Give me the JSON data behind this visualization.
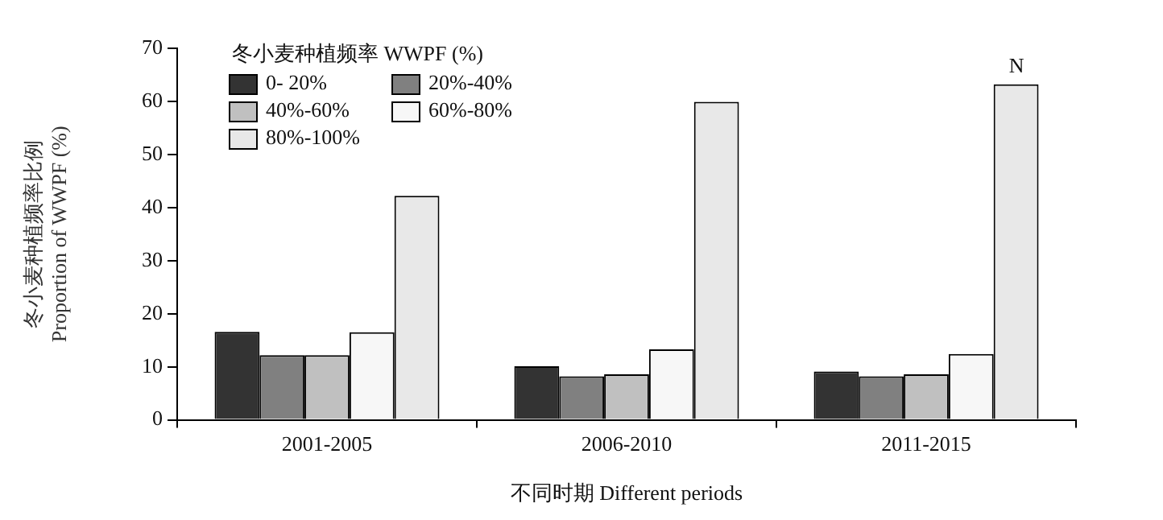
{
  "chart_data": {
    "type": "bar",
    "xlabel": "不同时期 Different periods",
    "ylabel": "冬小麦种植频率比例\nProportion of WWPF (%)",
    "legend_title": "冬小麦种植频率 WWPF (%)",
    "categories": [
      "2001-2005",
      "2006-2010",
      "2011-2015"
    ],
    "series": [
      {
        "name": "0- 20%",
        "color": "#333333",
        "values": [
          16.6,
          10.1,
          9.1
        ]
      },
      {
        "name": "20%-40%",
        "color": "#808080",
        "values": [
          12.2,
          8.2,
          8.2
        ]
      },
      {
        "name": "40%-60%",
        "color": "#c0c0c0",
        "values": [
          12.2,
          8.6,
          8.6
        ]
      },
      {
        "name": "60%-80%",
        "color": "#f7f7f7",
        "values": [
          16.5,
          13.3,
          12.4
        ]
      },
      {
        "name": "80%-100%",
        "color": "#e8e8e8",
        "values": [
          42.2,
          59.9,
          63.2
        ]
      }
    ],
    "ylim": [
      0,
      70
    ],
    "yticks": [
      0,
      10,
      20,
      30,
      40,
      50,
      60,
      70
    ],
    "grid": false,
    "legend": "top left",
    "annotations": [
      "N"
    ]
  }
}
